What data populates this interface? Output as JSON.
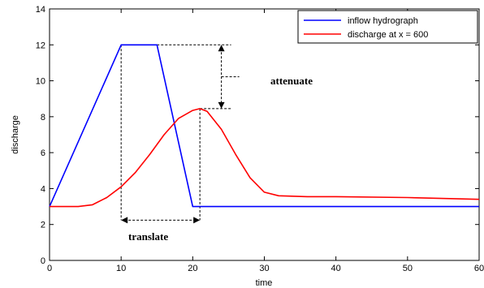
{
  "chart_data": {
    "type": "line",
    "title": "",
    "xlabel": "time",
    "ylabel": "discharge",
    "xlim": [
      0,
      60
    ],
    "ylim": [
      0,
      14
    ],
    "x_ticks": [
      0,
      10,
      20,
      30,
      40,
      50,
      60
    ],
    "y_ticks": [
      0,
      2,
      4,
      6,
      8,
      10,
      12,
      14
    ],
    "grid": false,
    "legend_position": "top-right",
    "series": [
      {
        "name": "inflow hydrograph",
        "color": "#0000ff",
        "points": [
          [
            0,
            3
          ],
          [
            10,
            12
          ],
          [
            15,
            12
          ],
          [
            20,
            3
          ],
          [
            60,
            3
          ]
        ]
      },
      {
        "name": "discharge at x = 600",
        "color": "#ff0000",
        "points": [
          [
            0,
            3
          ],
          [
            4,
            3
          ],
          [
            6,
            3.1
          ],
          [
            8,
            3.5
          ],
          [
            10,
            4.1
          ],
          [
            12,
            4.9
          ],
          [
            14,
            5.9
          ],
          [
            16,
            7.0
          ],
          [
            18,
            7.9
          ],
          [
            20,
            8.35
          ],
          [
            21,
            8.45
          ],
          [
            22,
            8.3
          ],
          [
            24,
            7.3
          ],
          [
            26,
            5.9
          ],
          [
            28,
            4.6
          ],
          [
            30,
            3.8
          ],
          [
            32,
            3.6
          ],
          [
            36,
            3.55
          ],
          [
            40,
            3.55
          ],
          [
            50,
            3.5
          ],
          [
            60,
            3.4
          ]
        ]
      }
    ],
    "annotations": {
      "attenuate": "attenuate",
      "translate": "translate"
    }
  }
}
